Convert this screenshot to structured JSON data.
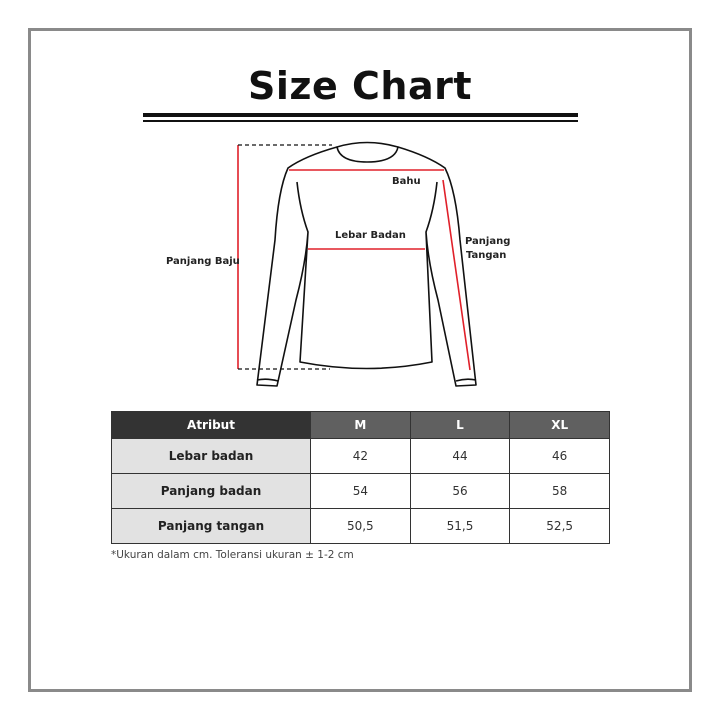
{
  "title": "Size Chart",
  "diagram": {
    "labels": {
      "shoulder": "Bahu",
      "body_width": "Lebar Badan",
      "body_length": "Panjang Baju",
      "sleeve_length_1": "Panjang",
      "sleeve_length_2": "Tangan"
    },
    "measure_color": "#e0202a"
  },
  "table": {
    "headers": [
      "Atribut",
      "M",
      "L",
      "XL"
    ],
    "rows": [
      {
        "label": "Lebar badan",
        "values": [
          "42",
          "44",
          "46"
        ]
      },
      {
        "label": "Panjang badan",
        "values": [
          "54",
          "56",
          "58"
        ]
      },
      {
        "label": "Panjang tangan",
        "values": [
          "50,5",
          "51,5",
          "52,5"
        ]
      }
    ]
  },
  "note": "*Ukuran dalam cm. Toleransi ukuran ± 1-2 cm"
}
